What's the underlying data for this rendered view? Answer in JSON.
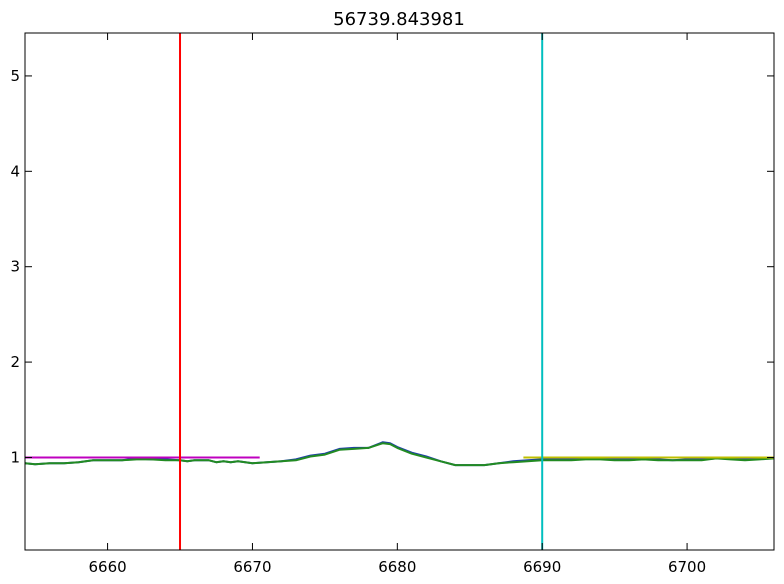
{
  "chart_data": {
    "type": "line",
    "title": "56739.843981",
    "xlabel": "",
    "ylabel": "",
    "xlim": [
      6654.3,
      6706.0
    ],
    "ylim": [
      0.03,
      5.45
    ],
    "xticks": [
      6660,
      6670,
      6680,
      6690,
      6700
    ],
    "xtick_labels": [
      "6660",
      "6670",
      "6680",
      "6690",
      "6700"
    ],
    "yticks": [
      1,
      2,
      3,
      4,
      5
    ],
    "ytick_labels": [
      "1",
      "2",
      "3",
      "4",
      "5"
    ],
    "grid": false,
    "legend": "none",
    "series": [
      {
        "color": "#1f3fa8",
        "x": [
          6654.3,
          6655,
          6656,
          6657,
          6658,
          6659,
          6660,
          6661,
          6662,
          6663,
          6664,
          6665,
          6665.5,
          6666,
          6667,
          6667.5,
          6668,
          6668.5,
          6669,
          6670,
          6671,
          6672,
          6673,
          6674,
          6675,
          6676,
          6677,
          6678,
          6679,
          6679.5,
          6680,
          6681,
          6682,
          6683,
          6684,
          6685,
          6686,
          6687,
          6688,
          6689,
          6690,
          6691,
          6692,
          6693,
          6694,
          6695,
          6696,
          6697,
          6698,
          6699,
          6700,
          6701,
          6702,
          6703,
          6704,
          6705,
          6706
        ],
        "y": [
          0.94,
          0.93,
          0.94,
          0.94,
          0.95,
          0.97,
          0.97,
          0.97,
          0.99,
          0.98,
          0.98,
          0.97,
          0.96,
          0.97,
          0.97,
          0.95,
          0.96,
          0.95,
          0.96,
          0.94,
          0.95,
          0.96,
          0.98,
          1.02,
          1.04,
          1.09,
          1.1,
          1.1,
          1.16,
          1.15,
          1.11,
          1.05,
          1.01,
          0.96,
          0.92,
          0.92,
          0.92,
          0.94,
          0.96,
          0.97,
          0.98,
          0.98,
          0.98,
          0.99,
          0.99,
          0.98,
          0.98,
          0.98,
          0.98,
          0.97,
          0.98,
          0.98,
          0.99,
          0.99,
          0.98,
          0.99,
          1.0
        ]
      },
      {
        "color": "#228b22",
        "x": [
          6654.3,
          6655,
          6656,
          6657,
          6658,
          6659,
          6660,
          6661,
          6662,
          6663,
          6664,
          6665,
          6665.5,
          6666,
          6667,
          6667.5,
          6668,
          6668.5,
          6669,
          6670,
          6671,
          6672,
          6673,
          6674,
          6675,
          6676,
          6677,
          6678,
          6679,
          6679.5,
          6680,
          6681,
          6682,
          6683,
          6684,
          6685,
          6686,
          6687,
          6688,
          6689,
          6690,
          6691,
          6692,
          6693,
          6694,
          6695,
          6696,
          6697,
          6698,
          6699,
          6700,
          6701,
          6702,
          6703,
          6704,
          6705,
          6706
        ],
        "y": [
          0.94,
          0.93,
          0.94,
          0.94,
          0.95,
          0.97,
          0.97,
          0.97,
          0.98,
          0.98,
          0.97,
          0.97,
          0.96,
          0.97,
          0.97,
          0.95,
          0.96,
          0.95,
          0.96,
          0.94,
          0.95,
          0.96,
          0.97,
          1.01,
          1.03,
          1.08,
          1.09,
          1.1,
          1.15,
          1.14,
          1.1,
          1.04,
          1.0,
          0.96,
          0.92,
          0.92,
          0.92,
          0.94,
          0.95,
          0.96,
          0.97,
          0.97,
          0.97,
          0.98,
          0.98,
          0.97,
          0.97,
          0.98,
          0.97,
          0.97,
          0.97,
          0.97,
          0.99,
          0.98,
          0.97,
          0.98,
          0.99
        ]
      },
      {
        "color": "#bf00bf",
        "x": [
          6654.3,
          6670.5
        ],
        "y": [
          1.0,
          1.0
        ]
      },
      {
        "color": "#bfbf00",
        "x": [
          6688.7,
          6706.0
        ],
        "y": [
          1.0,
          1.0
        ]
      }
    ],
    "vlines": [
      {
        "x": 6665,
        "color": "#ff0000"
      },
      {
        "x": 6690,
        "color": "#00bfbf"
      }
    ]
  }
}
